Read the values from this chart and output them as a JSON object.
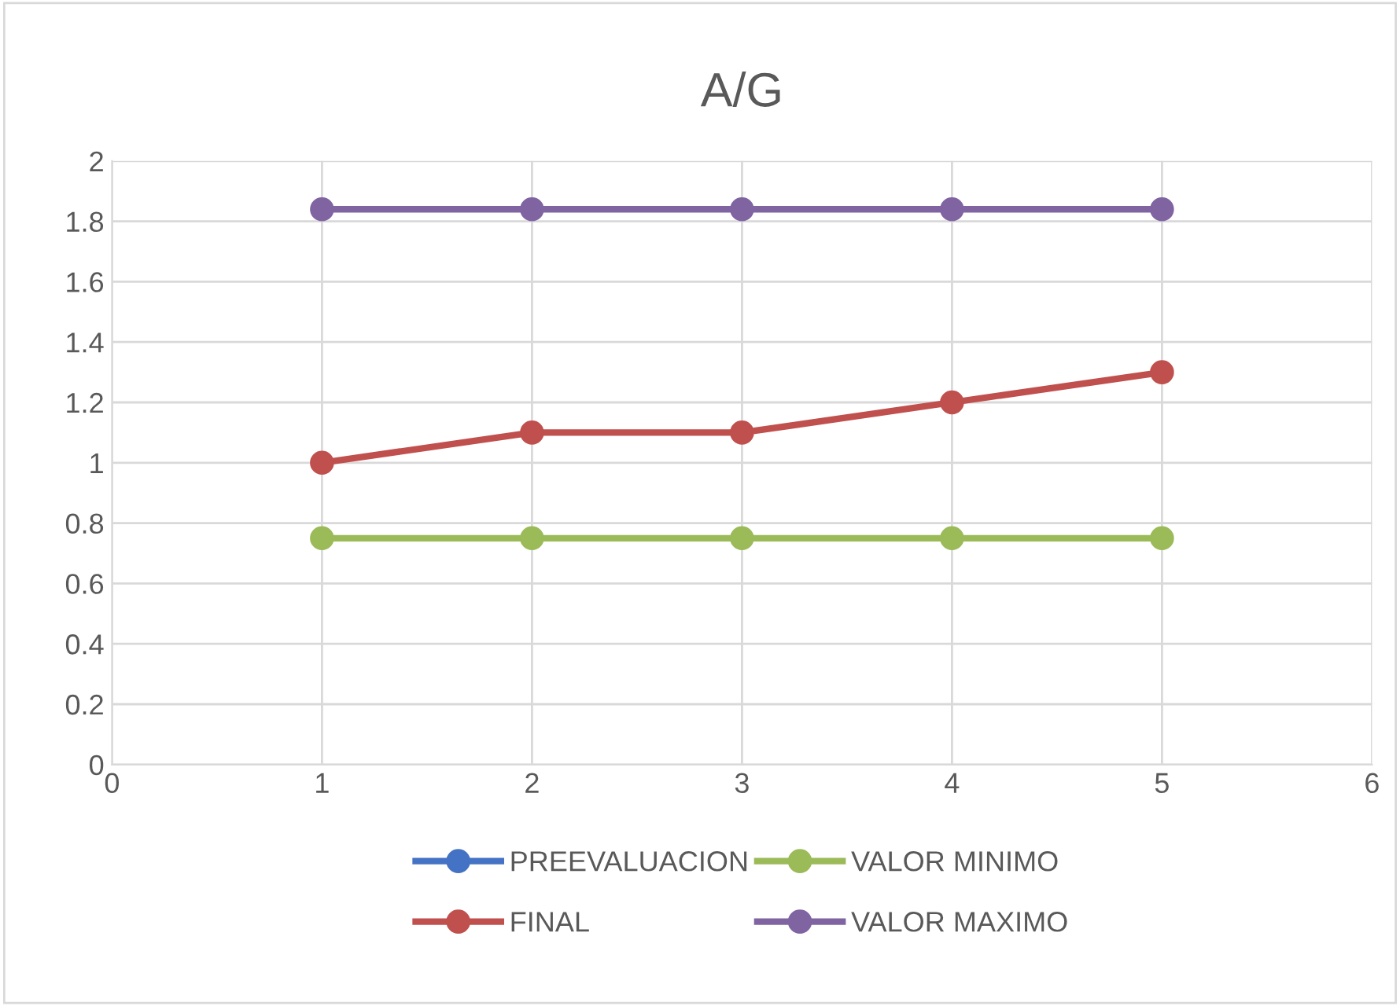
{
  "chart_data": {
    "type": "line",
    "title": "A/G",
    "x": [
      1,
      2,
      3,
      4,
      5
    ],
    "series": [
      {
        "name": "PREEVALUACION",
        "color": "#4472c4",
        "values": [
          null,
          null,
          null,
          null,
          null
        ]
      },
      {
        "name": "FINAL",
        "color": "#c0504d",
        "values": [
          1,
          1.1,
          1.1,
          1.2,
          1.3
        ]
      },
      {
        "name": "VALOR MINIMO",
        "color": "#9bbb59",
        "values": [
          0.75,
          0.75,
          0.75,
          0.75,
          0.75
        ]
      },
      {
        "name": "VALOR MAXIMO",
        "color": "#8064a2",
        "values": [
          1.84,
          1.84,
          1.84,
          1.84,
          1.84
        ]
      }
    ],
    "xlim": [
      0,
      6
    ],
    "xticks": [
      0,
      1,
      2,
      3,
      4,
      5,
      6
    ],
    "ylim": [
      0,
      2
    ],
    "yticks": [
      0,
      0.2,
      0.4,
      0.6,
      0.8,
      1,
      1.2,
      1.4,
      1.6,
      1.8,
      2
    ],
    "grid": true,
    "legend": "bottom",
    "marker": "circle",
    "line_style": "solid"
  }
}
